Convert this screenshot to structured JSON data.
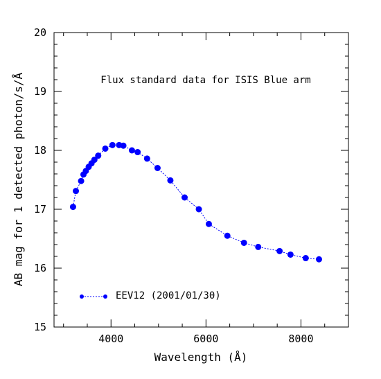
{
  "chart_data": {
    "type": "line",
    "title": "Flux standard data for ISIS Blue arm",
    "xlabel": "Wavelength (Å)",
    "ylabel": "AB mag for 1 detected photon/s/Å",
    "xlim": [
      2800,
      9000
    ],
    "ylim": [
      15,
      20
    ],
    "x_ticks": [
      4000,
      6000,
      8000
    ],
    "x_tick_labels": [
      "4000",
      "6000",
      "8000"
    ],
    "y_ticks": [
      15,
      16,
      17,
      18,
      19,
      20
    ],
    "y_tick_labels": [
      "15",
      "16",
      "17",
      "18",
      "19",
      "20"
    ],
    "grid": false,
    "legend_position": "bottom-left",
    "color": "#0000ff",
    "series": [
      {
        "name": "EEV12 (2001/01/30)",
        "x": [
          3200,
          3260,
          3370,
          3420,
          3470,
          3530,
          3590,
          3650,
          3730,
          3880,
          4030,
          4170,
          4260,
          4440,
          4560,
          4760,
          4980,
          5250,
          5550,
          5850,
          6060,
          6450,
          6800,
          7100,
          7550,
          7780,
          8100,
          8380
        ],
        "y": [
          17.04,
          17.31,
          17.48,
          17.59,
          17.65,
          17.72,
          17.78,
          17.84,
          17.91,
          18.03,
          18.09,
          18.09,
          18.08,
          18.0,
          17.97,
          17.86,
          17.7,
          17.49,
          17.2,
          17.0,
          16.75,
          16.55,
          16.43,
          16.36,
          16.29,
          16.23,
          16.17,
          16.15
        ]
      }
    ]
  }
}
